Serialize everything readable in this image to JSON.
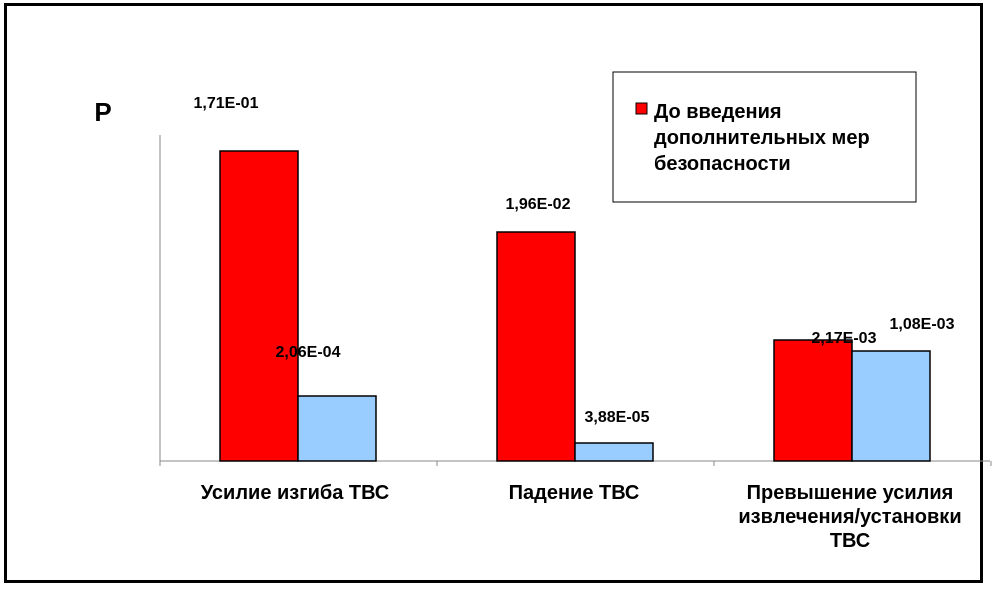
{
  "chart_data": {
    "type": "bar",
    "ylabel": "P",
    "categories": [
      [
        "Усилие изгиба ТВС"
      ],
      [
        "Падение ТВС"
      ],
      [
        "Превышение усилия",
        "извлечения/установки",
        "ТВС"
      ]
    ],
    "series": [
      {
        "name": [
          "До введения",
          "дополнительных мер",
          "безопасности"
        ],
        "color": "#ff0000",
        "values": [
          0.171,
          0.0196,
          0.00217
        ],
        "labels": [
          "1,71E-01",
          "1,96E-02",
          "2,17E-03"
        ]
      },
      {
        "color": "#99ccff",
        "values": [
          0.000206,
          3.88e-05,
          0.00108
        ],
        "labels": [
          "2,06E-04",
          "3,88E-05",
          "1,08E-03"
        ]
      }
    ],
    "legend": "top-right",
    "grid": false
  }
}
